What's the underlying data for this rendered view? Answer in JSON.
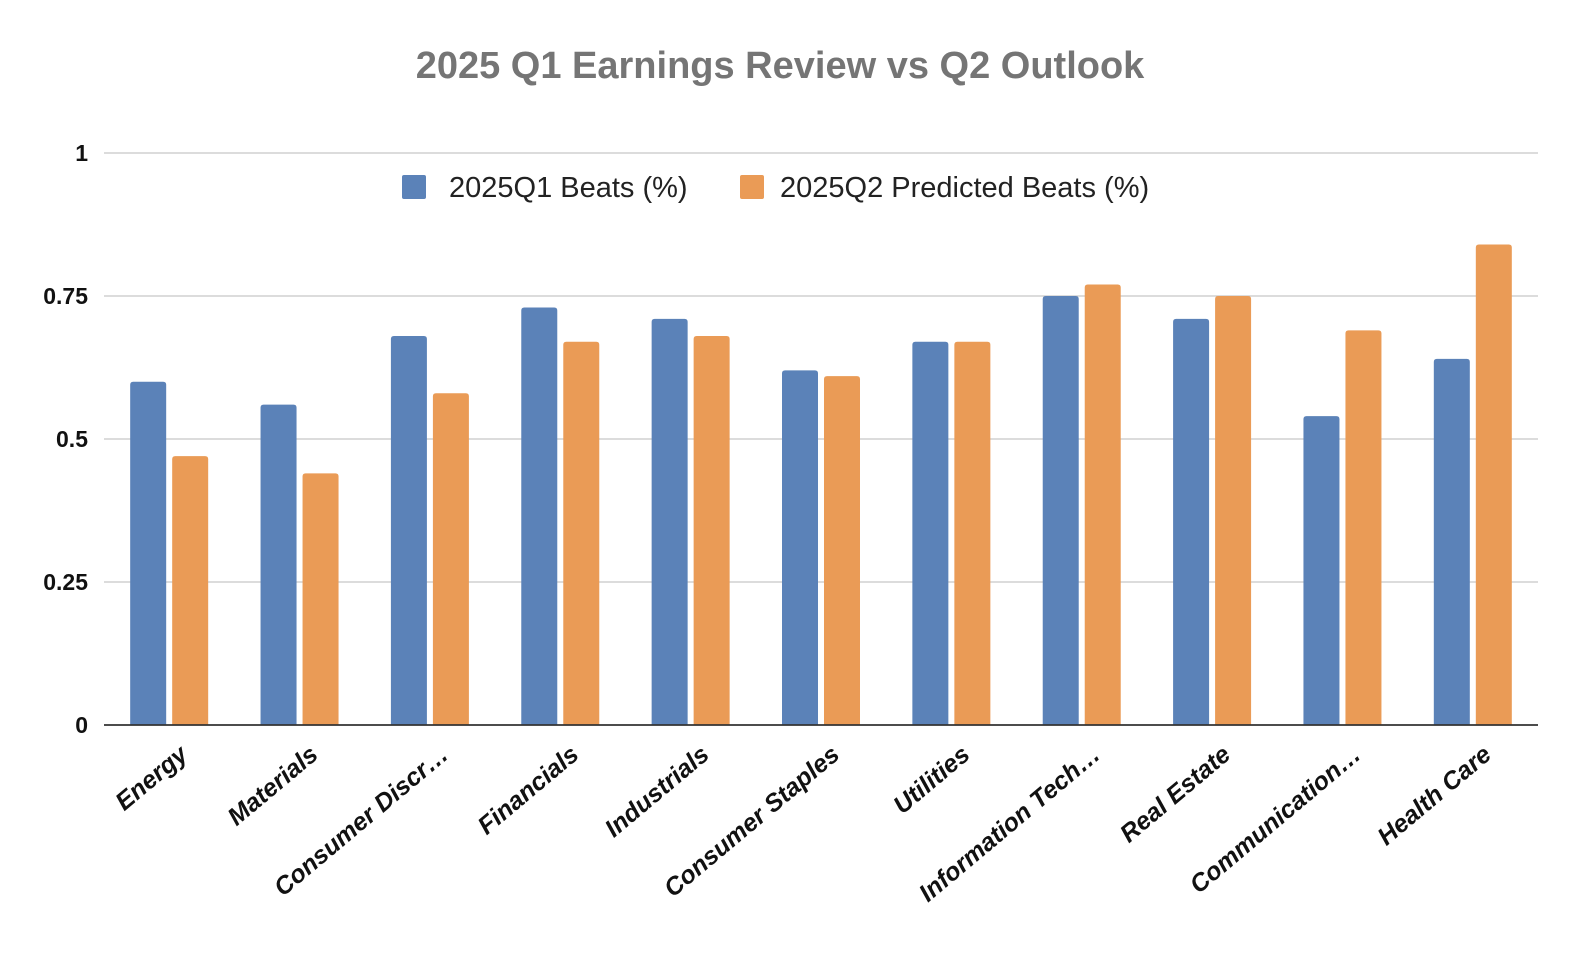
{
  "chart_data": {
    "type": "bar",
    "title": "2025 Q1 Earnings Review vs Q2 Outlook",
    "xlabel": "",
    "ylabel": "",
    "categories": [
      "Energy",
      "Materials",
      "Consumer Discr…",
      "Financials",
      "Industrials",
      "Consumer Staples",
      "Utilities",
      "Information Tech…",
      "Real Estate",
      "Communication…",
      "Health Care"
    ],
    "series": [
      {
        "name": "2025Q1 Beats (%)",
        "color": "#5b82b8",
        "values": [
          0.6,
          0.56,
          0.68,
          0.73,
          0.71,
          0.62,
          0.67,
          0.75,
          0.71,
          0.54,
          0.64
        ]
      },
      {
        "name": "2025Q2 Predicted Beats (%)",
        "color": "#ea9b56",
        "values": [
          0.47,
          0.44,
          0.58,
          0.67,
          0.68,
          0.61,
          0.67,
          0.77,
          0.75,
          0.69,
          0.84
        ]
      }
    ],
    "ylim": [
      0,
      1
    ],
    "yticks": [
      {
        "value": 0,
        "label": "0"
      },
      {
        "value": 0.25,
        "label": "0.25"
      },
      {
        "value": 0.5,
        "label": "0.5"
      },
      {
        "value": 0.75,
        "label": "0.75"
      },
      {
        "value": 1,
        "label": "1"
      }
    ],
    "grid": true,
    "legend_position": "top"
  }
}
